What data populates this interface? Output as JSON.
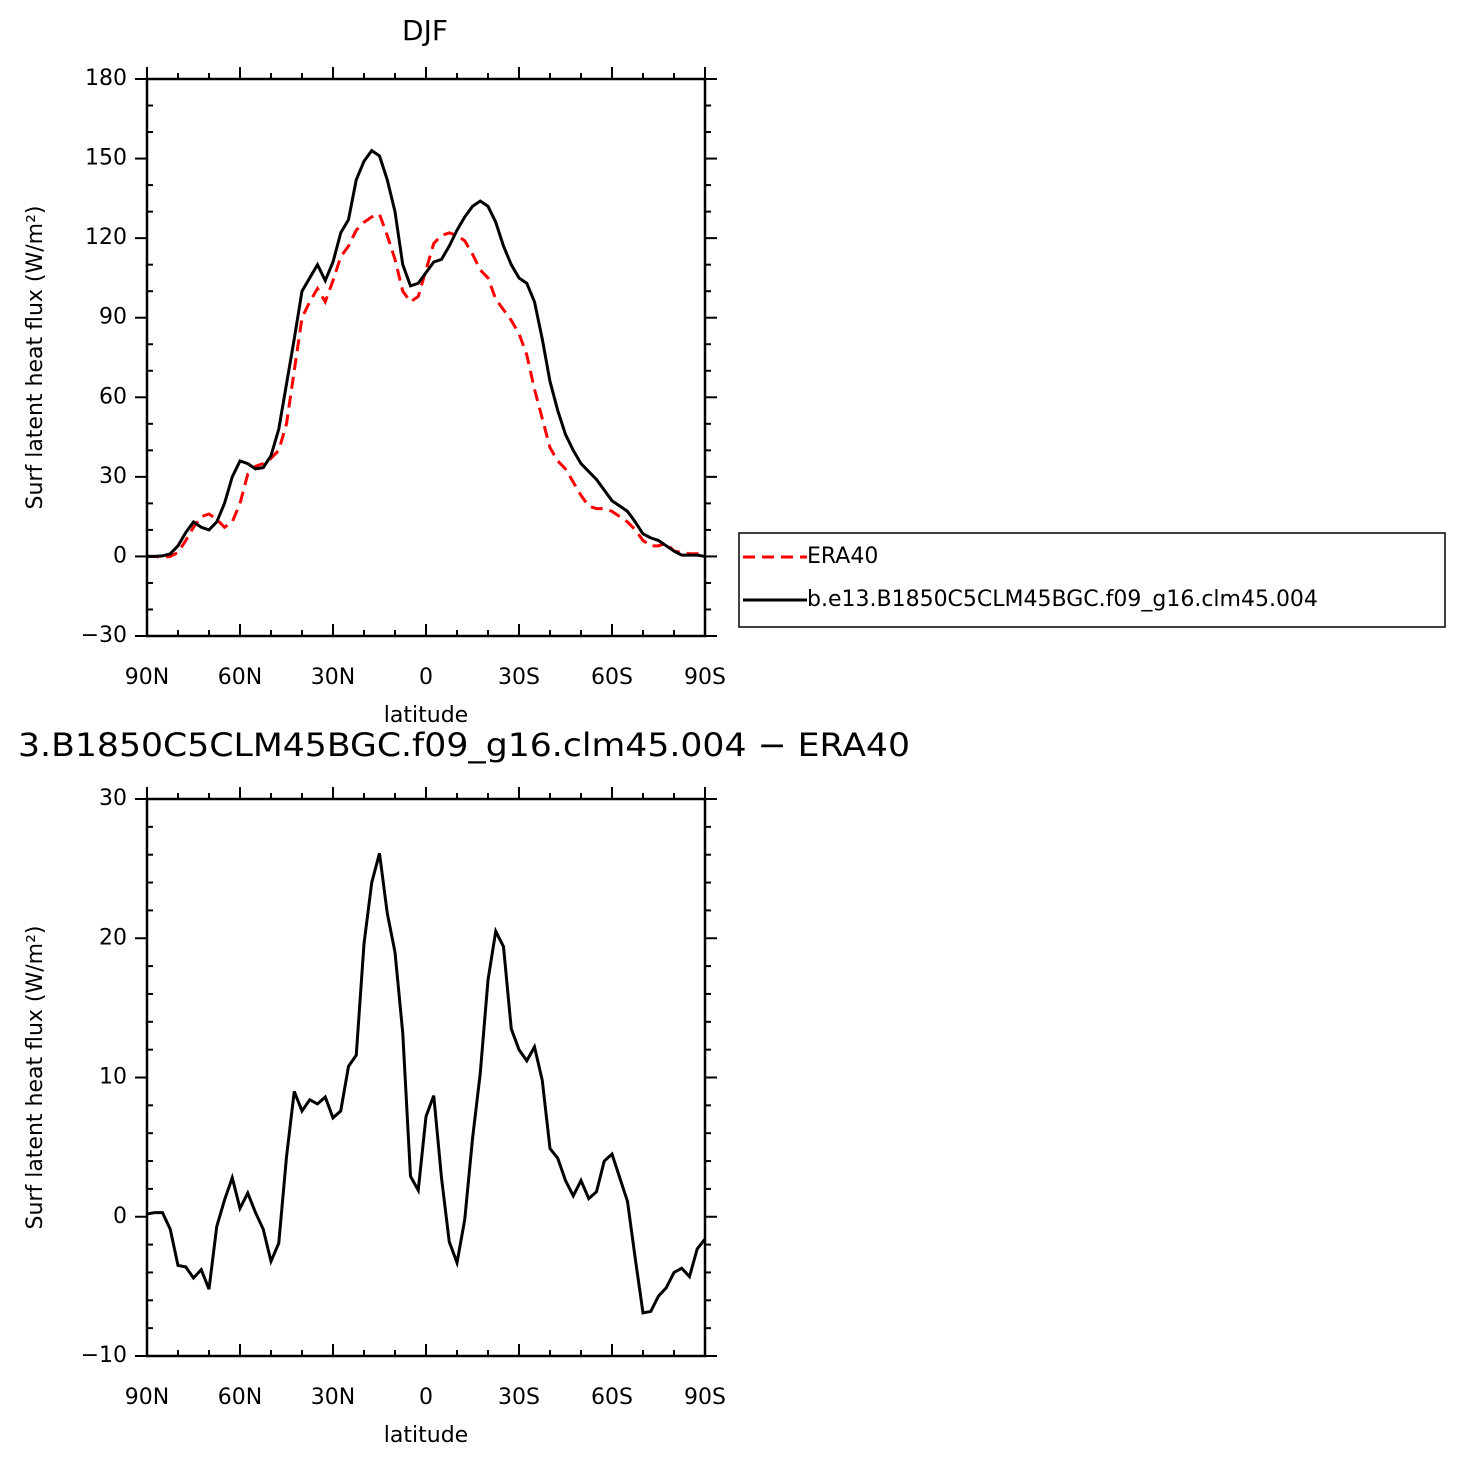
{
  "chart_data": [
    {
      "type": "line",
      "title": "DJF",
      "xlabel": "latitude",
      "ylabel": "Surf latent heat flux (W/m²)",
      "x": [
        90,
        87.5,
        85,
        82.5,
        80,
        77.5,
        75,
        72.5,
        70,
        67.5,
        65,
        62.5,
        60,
        57.5,
        55,
        52.5,
        50,
        47.5,
        45,
        42.5,
        40,
        37.5,
        35,
        32.5,
        30,
        27.5,
        25,
        22.5,
        20,
        17.5,
        15,
        12.5,
        10,
        7.5,
        5,
        2.5,
        0,
        -2.5,
        -5,
        -7.5,
        -10,
        -12.5,
        -15,
        -17.5,
        -20,
        -22.5,
        -25,
        -27.5,
        -30,
        -32.5,
        -35,
        -37.5,
        -40,
        -42.5,
        -45,
        -47.5,
        -50,
        -52.5,
        -55,
        -57.5,
        -60,
        -62.5,
        -65,
        -67.5,
        -70,
        -72.5,
        -75,
        -77.5,
        -80,
        -82.5,
        -85,
        -87.5,
        -90
      ],
      "series": [
        {
          "name": "ERA40",
          "color": "#ff0000",
          "line_style": "dashed",
          "values": [
            0,
            0,
            -0.3,
            0,
            1.5,
            6,
            11,
            15,
            16,
            14,
            11,
            13,
            20,
            31,
            34,
            35,
            37,
            40,
            50,
            70,
            90,
            96,
            101,
            96,
            104,
            113,
            117,
            123,
            126,
            128,
            129,
            121,
            112,
            100,
            96,
            98,
            108,
            118,
            121,
            122,
            121,
            119,
            114,
            108,
            105,
            97,
            93,
            89,
            84,
            76,
            63,
            52,
            41,
            36,
            33,
            28,
            23,
            19,
            18,
            18,
            17,
            15,
            13,
            10,
            6,
            4,
            4,
            5,
            2,
            1.5,
            1,
            1,
            1
          ]
        },
        {
          "name": "b.e13.B1850C5CLM45BGC.f09_g16.clm45.004",
          "color": "#000000",
          "line_style": "solid",
          "values": [
            0,
            0,
            0.2,
            1,
            4,
            9,
            13,
            11,
            10,
            13,
            20,
            30,
            36,
            35,
            33,
            33.5,
            38,
            48,
            65,
            82,
            100,
            105,
            110,
            104,
            111,
            122,
            127,
            142,
            149,
            153,
            151,
            142,
            130,
            110,
            102,
            103,
            107,
            111,
            112,
            117,
            123,
            128,
            132,
            134,
            132,
            126,
            117,
            110,
            105,
            103,
            96,
            82,
            66,
            55,
            46,
            40,
            35,
            32,
            29,
            25,
            21,
            19,
            17,
            13,
            8.5,
            7,
            6,
            4,
            2,
            0.5,
            0.5,
            0.5,
            0
          ]
        }
      ],
      "xlim": [
        90,
        -90
      ],
      "xticks": [
        {
          "value": 90,
          "label": "90N"
        },
        {
          "value": 60,
          "label": "60N"
        },
        {
          "value": 30,
          "label": "30N"
        },
        0,
        {
          "value": -30,
          "label": "30S"
        },
        {
          "value": -60,
          "label": "60S"
        },
        {
          "value": -90,
          "label": "90S"
        }
      ],
      "ylim": [
        -30,
        180
      ],
      "yticks": [
        {
          "value": -30,
          "label": "−30"
        },
        0,
        30,
        60,
        90,
        120,
        150,
        180
      ],
      "legend": "right"
    },
    {
      "type": "line",
      "title": "3.B1850C5CLM45BGC.f09_g16.clm45.004 − ERA40",
      "xlabel": "latitude",
      "ylabel": "Surf latent heat flux (W/m²)",
      "x": [
        90,
        87.5,
        85,
        82.5,
        80,
        77.5,
        75,
        72.5,
        70,
        67.5,
        65,
        62.5,
        60,
        57.5,
        55,
        52.5,
        50,
        47.5,
        45,
        42.5,
        40,
        37.5,
        35,
        32.5,
        30,
        27.5,
        25,
        22.5,
        20,
        17.5,
        15,
        12.5,
        10,
        7.5,
        5,
        2.5,
        0,
        -2.5,
        -5,
        -7.5,
        -10,
        -12.5,
        -15,
        -17.5,
        -20,
        -22.5,
        -25,
        -27.5,
        -30,
        -32.5,
        -35,
        -37.5,
        -40,
        -42.5,
        -45,
        -47.5,
        -50,
        -52.5,
        -55,
        -57.5,
        -60,
        -62.5,
        -65,
        -67.5,
        -70,
        -72.5,
        -75,
        -77.5,
        -80,
        -82.5,
        -85,
        -87.5,
        -90
      ],
      "series": [
        {
          "color": "#000000",
          "line_style": "solid",
          "values": [
            0.2,
            0.3,
            0.3,
            -0.9,
            -3.5,
            -3.6,
            -4.4,
            -3.8,
            -5.2,
            -0.7,
            1.2,
            2.8,
            0.6,
            1.7,
            0.3,
            -0.9,
            -3.2,
            -1.9,
            4.3,
            9.0,
            7.6,
            8.4,
            8.1,
            8.6,
            7.1,
            7.6,
            10.8,
            11.6,
            19.6,
            24.0,
            26.1,
            21.8,
            19.0,
            13.2,
            2.9,
            1.9,
            7.2,
            8.7,
            2.8,
            -1.8,
            -3.3,
            -0.2,
            5.6,
            10.3,
            17.0,
            20.5,
            19.4,
            13.5,
            12.0,
            11.2,
            12.2,
            9.8,
            4.9,
            4.2,
            2.6,
            1.5,
            2.6,
            1.3,
            1.8,
            4.0,
            4.5,
            2.8,
            1.1,
            -3.0,
            -6.9,
            -6.8,
            -5.7,
            -5.1,
            -4.0,
            -3.7,
            -4.3,
            -2.3,
            -1.6
          ]
        }
      ],
      "xlim": [
        90,
        -90
      ],
      "xticks": [
        {
          "value": 90,
          "label": "90N"
        },
        {
          "value": 60,
          "label": "60N"
        },
        {
          "value": 30,
          "label": "30N"
        },
        0,
        {
          "value": -30,
          "label": "30S"
        },
        {
          "value": -60,
          "label": "60S"
        },
        {
          "value": -90,
          "label": "90S"
        }
      ],
      "ylim": [
        -10,
        30
      ],
      "yticks": [
        {
          "value": -10,
          "label": "−10"
        },
        0,
        10,
        20,
        30
      ]
    }
  ]
}
